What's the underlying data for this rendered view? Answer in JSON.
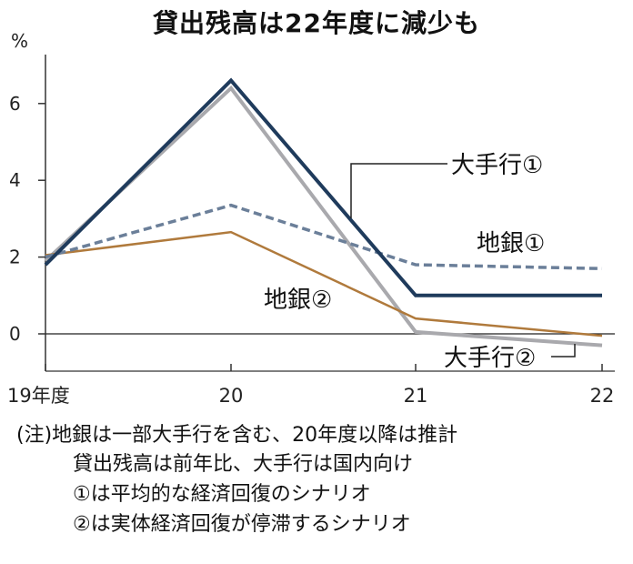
{
  "chart_data": {
    "type": "line",
    "title": "貸出残高は22年度に減少も",
    "ylabel": "%",
    "x_ticks": [
      "19年度",
      "20",
      "21",
      "22"
    ],
    "y_ticks": [
      "0",
      "2",
      "4",
      "6"
    ],
    "ylim": [
      -1,
      7.5
    ],
    "series": [
      {
        "name": "大手行①",
        "values": [
          1.8,
          6.6,
          1.0,
          1.0
        ],
        "color": "#1f3b5c",
        "style": "solid",
        "width": 4
      },
      {
        "name": "地銀①",
        "values": [
          2.0,
          3.35,
          1.8,
          1.7
        ],
        "color": "#6b7f99",
        "style": "dashed",
        "width": 3.5
      },
      {
        "name": "地銀②",
        "values": [
          2.05,
          2.65,
          0.4,
          -0.05
        ],
        "color": "#b07a3c",
        "style": "solid",
        "width": 2.5
      },
      {
        "name": "大手行②",
        "values": [
          1.9,
          6.4,
          0.05,
          -0.3
        ],
        "color": "#a9a9ad",
        "style": "solid",
        "width": 4
      }
    ]
  },
  "notes": [
    "(注)地銀は一部大手行を含む、20年度以降は推計",
    "貸出残高は前年比、大手行は国内向け",
    "①は平均的な経済回復のシナリオ",
    "②は実体経済回復が停滞するシナリオ"
  ]
}
